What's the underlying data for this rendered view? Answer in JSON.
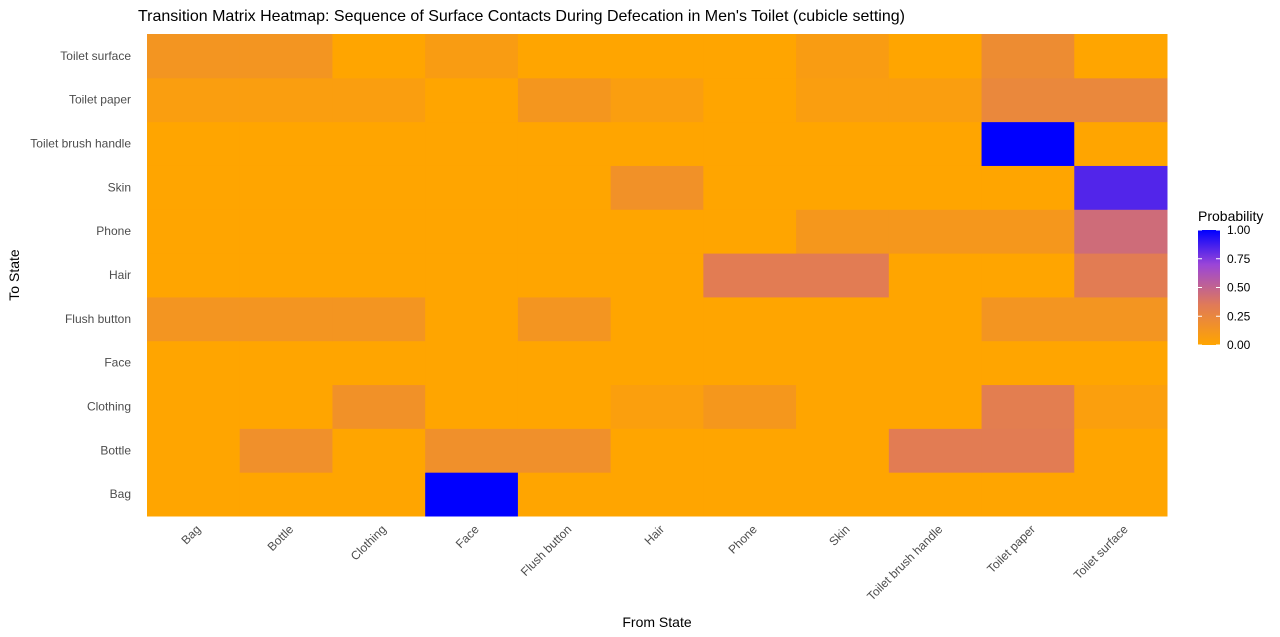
{
  "chart_data": {
    "type": "heatmap",
    "title": "Transition Matrix Heatmap: Sequence of Surface Contacts During Defecation in Men's Toilet (cubicle setting)",
    "xlabel": "From State",
    "ylabel": "To State",
    "x_categories": [
      "Bag",
      "Bottle",
      "Clothing",
      "Face",
      "Flush button",
      "Hair",
      "Phone",
      "Skin",
      "Toilet brush handle",
      "Toilet paper",
      "Toilet surface"
    ],
    "y_categories": [
      "Bag",
      "Bottle",
      "Clothing",
      "Face",
      "Flush button",
      "Hair",
      "Phone",
      "Skin",
      "Toilet brush handle",
      "Toilet paper",
      "Toilet surface"
    ],
    "values": [
      [
        0.0,
        0.0,
        0.0,
        1.0,
        0.0,
        0.0,
        0.0,
        0.0,
        0.0,
        0.0,
        0.0
      ],
      [
        0.0,
        0.17,
        0.0,
        0.17,
        0.17,
        0.0,
        0.0,
        0.0,
        0.33,
        0.33,
        0.0
      ],
      [
        0.0,
        0.0,
        0.16,
        0.0,
        0.0,
        0.05,
        0.11,
        0.0,
        0.0,
        0.32,
        0.05
      ],
      [
        0.0,
        0.0,
        0.0,
        0.0,
        0.0,
        0.0,
        0.0,
        0.0,
        0.0,
        0.0,
        0.0
      ],
      [
        0.13,
        0.13,
        0.13,
        0.0,
        0.13,
        0.0,
        0.0,
        0.0,
        0.0,
        0.13,
        0.13
      ],
      [
        0.0,
        0.0,
        0.0,
        0.0,
        0.0,
        0.0,
        0.33,
        0.33,
        0.0,
        0.0,
        0.33
      ],
      [
        0.0,
        0.0,
        0.0,
        0.0,
        0.0,
        0.0,
        0.0,
        0.11,
        0.11,
        0.11,
        0.44
      ],
      [
        0.0,
        0.0,
        0.0,
        0.0,
        0.0,
        0.16,
        0.0,
        0.0,
        0.0,
        0.0,
        0.84
      ],
      [
        0.0,
        0.0,
        0.0,
        0.0,
        0.0,
        0.0,
        0.0,
        0.0,
        0.0,
        1.0,
        0.0
      ],
      [
        0.06,
        0.06,
        0.06,
        0.0,
        0.12,
        0.06,
        0.0,
        0.06,
        0.06,
        0.24,
        0.24
      ],
      [
        0.13,
        0.13,
        0.0,
        0.07,
        0.0,
        0.0,
        0.0,
        0.07,
        0.0,
        0.2,
        0.0
      ]
    ],
    "color_scale": {
      "low": "#FFA500",
      "high": "#0000FF"
    },
    "legend": {
      "title": "Probability",
      "ticks": [
        0.0,
        0.25,
        0.5,
        0.75,
        1.0
      ],
      "tick_labels": [
        "0.00",
        "0.25",
        "0.50",
        "0.75",
        "1.00"
      ],
      "position": "right"
    },
    "grid": true,
    "zlim": [
      0,
      1
    ]
  }
}
